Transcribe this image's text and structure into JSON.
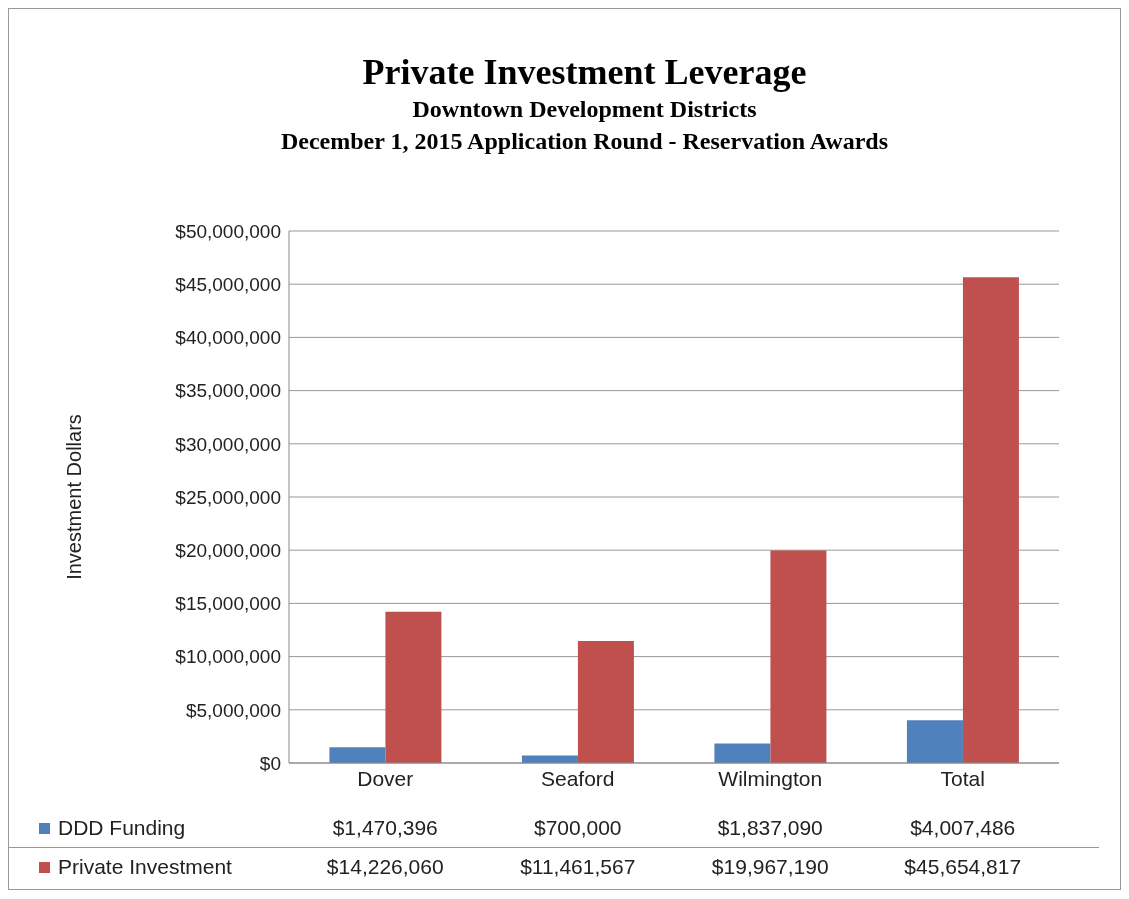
{
  "chart_data": {
    "type": "bar",
    "title": "Private Investment Leverage",
    "subtitle": "Downtown Development Districts\nDecember 1, 2015 Application Round - Reservation Awards",
    "ylabel": "Investment Dollars",
    "categories": [
      "Dover",
      "Seaford",
      "Wilmington",
      "Total"
    ],
    "series": [
      {
        "name": "DDD Funding",
        "color": "#4f81bd",
        "values": [
          1470396,
          700000,
          1837090,
          4007486
        ],
        "value_labels": [
          "$1,470,396",
          "$700,000",
          "$1,837,090",
          "$4,007,486"
        ]
      },
      {
        "name": "Private Investment",
        "color": "#c0504d",
        "values": [
          14226060,
          11461567,
          19967190,
          45654817
        ],
        "value_labels": [
          "$14,226,060",
          "$11,461,567",
          "$19,967,190",
          "$45,654,817"
        ]
      }
    ],
    "ylim": [
      0,
      50000000
    ],
    "yticks": [
      {
        "value": 0,
        "label": "$0"
      },
      {
        "value": 5000000,
        "label": "$5,000,000"
      },
      {
        "value": 10000000,
        "label": "$10,000,000"
      },
      {
        "value": 15000000,
        "label": "$15,000,000"
      },
      {
        "value": 20000000,
        "label": "$20,000,000"
      },
      {
        "value": 25000000,
        "label": "$25,000,000"
      },
      {
        "value": 30000000,
        "label": "$30,000,000"
      },
      {
        "value": 35000000,
        "label": "$35,000,000"
      },
      {
        "value": 40000000,
        "label": "$40,000,000"
      },
      {
        "value": 45000000,
        "label": "$45,000,000"
      },
      {
        "value": 50000000,
        "label": "$50,000,000"
      }
    ],
    "grid": "y",
    "legend": "bottom left"
  }
}
